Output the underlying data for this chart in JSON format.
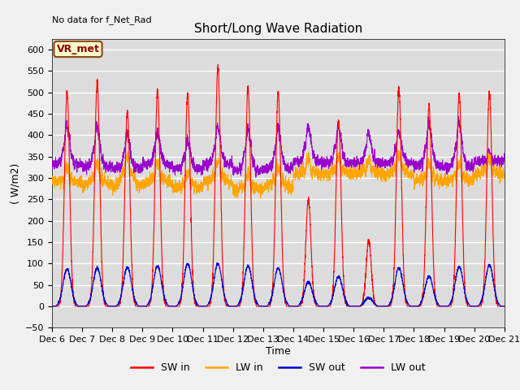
{
  "title": "Short/Long Wave Radiation",
  "ylabel": "( W/m2)",
  "xlabel": "Time",
  "annotation_top_left": "No data for f_Net_Rad",
  "legend_label": "VR_met",
  "ylim": [
    -50,
    625
  ],
  "yticks": [
    -50,
    0,
    50,
    100,
    150,
    200,
    250,
    300,
    350,
    400,
    450,
    500,
    550,
    600
  ],
  "x_tick_labels": [
    "Dec 6",
    "Dec 7",
    "Dec 8",
    "Dec 9",
    "Dec 10",
    "Dec 11",
    "Dec 12",
    "Dec 13",
    "Dec 14",
    "Dec 15",
    "Dec 16",
    "Dec 17",
    "Dec 18",
    "Dec 19",
    "Dec 20",
    "Dec 21"
  ],
  "series_colors": {
    "SW_in": "#FF0000",
    "LW_in": "#FFA500",
    "SW_out": "#0000CD",
    "LW_out": "#9900CC"
  },
  "legend_items": [
    {
      "label": "SW in",
      "color": "#FF0000"
    },
    {
      "label": "LW in",
      "color": "#FFA500"
    },
    {
      "label": "SW out",
      "color": "#0000CD"
    },
    {
      "label": "LW out",
      "color": "#9900CC"
    }
  ],
  "plot_bg_color": "#DCDCDC",
  "grid_color": "#FFFFFF",
  "fig_bg_color": "#F0F0F0",
  "n_days": 15,
  "pts_per_day": 288,
  "sw_peaks": [
    505,
    525,
    455,
    505,
    500,
    560,
    515,
    500,
    250,
    435,
    155,
    510,
    470,
    498,
    502
  ],
  "sw_out_peaks": [
    88,
    90,
    92,
    95,
    100,
    100,
    95,
    90,
    57,
    70,
    20,
    90,
    70,
    93,
    97
  ],
  "lw_in_base": [
    290,
    283,
    278,
    288,
    276,
    288,
    272,
    276,
    308,
    308,
    312,
    306,
    292,
    292,
    308
  ],
  "lw_in_day": [
    300,
    308,
    325,
    310,
    290,
    310,
    285,
    300,
    320,
    325,
    320,
    330,
    310,
    308,
    320
  ],
  "lw_out_base": [
    332,
    326,
    323,
    332,
    322,
    332,
    318,
    322,
    338,
    335,
    335,
    335,
    328,
    326,
    338
  ],
  "lw_out_day": [
    410,
    408,
    390,
    395,
    375,
    408,
    402,
    402,
    408,
    410,
    395,
    395,
    415,
    418,
    345
  ]
}
